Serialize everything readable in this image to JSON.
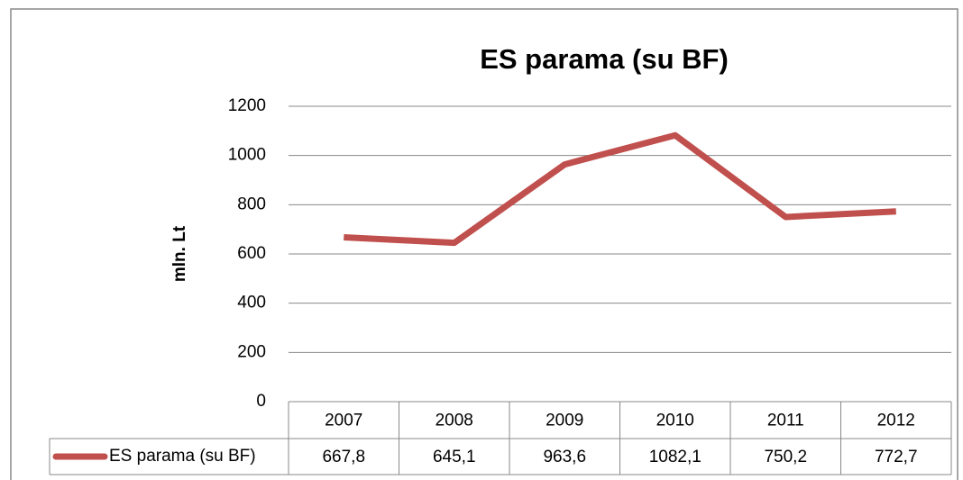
{
  "chart_data": {
    "type": "line",
    "title": "ES parama (su BF)",
    "y_label": "mln. Lt",
    "categories": [
      "2007",
      "2008",
      "2009",
      "2010",
      "2011",
      "2012"
    ],
    "series": [
      {
        "name": "ES parama (su BF)",
        "color": "#c0504d",
        "values": [
          667.8,
          645.1,
          963.6,
          1082.1,
          750.2,
          772.7
        ],
        "value_labels": [
          "667,8",
          "645,1",
          "963,6",
          "1082,1",
          "750,2",
          "772,7"
        ]
      }
    ],
    "ylim": [
      0,
      1200
    ],
    "yticks": [
      0,
      200,
      400,
      600,
      800,
      1000,
      1200
    ],
    "grid": true,
    "legend": "bottom-table"
  }
}
